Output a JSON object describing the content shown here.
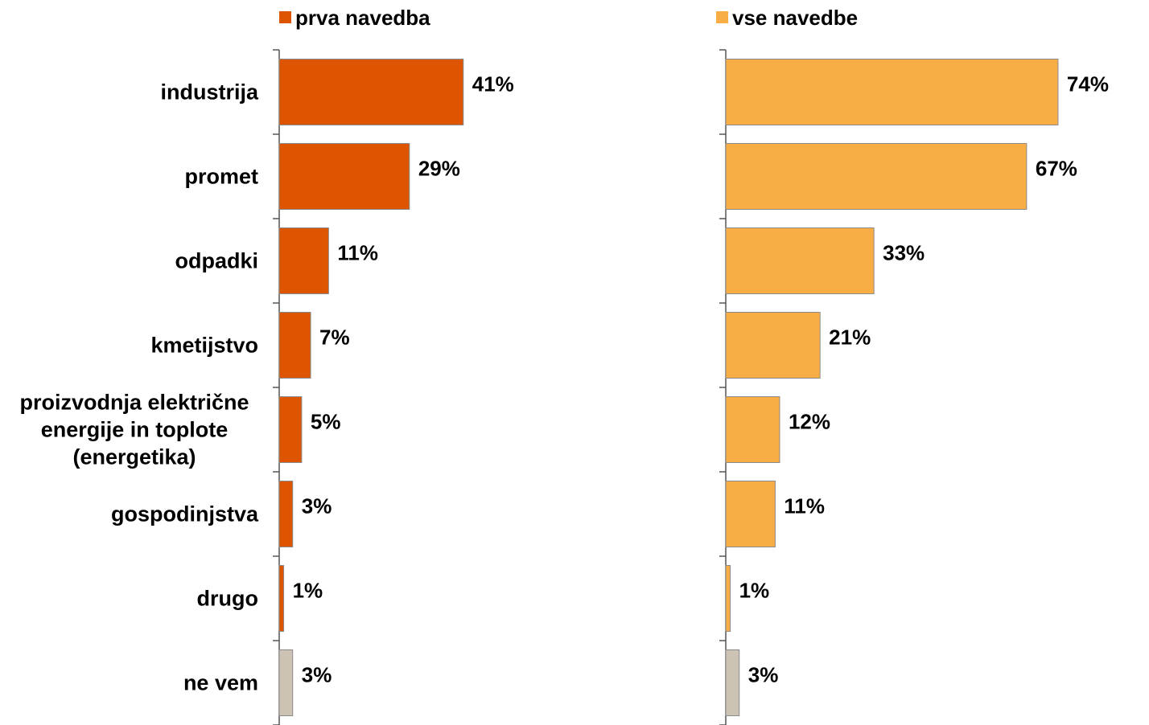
{
  "chart_data": {
    "type": "bar",
    "orientation": "horizontal",
    "categories": [
      [
        "industrija"
      ],
      [
        "promet"
      ],
      [
        "odpadki"
      ],
      [
        "kmetijstvo"
      ],
      [
        "proizvodnja električne",
        "energije in toplote",
        "(energetika)"
      ],
      [
        "gospodinjstva"
      ],
      [
        "drugo"
      ],
      [
        "ne vem"
      ]
    ],
    "series": [
      {
        "name": "prva navedba",
        "color": "#DD5500",
        "values": [
          41,
          29,
          11,
          7,
          5,
          3,
          1,
          3
        ],
        "labels": [
          "41%",
          "29%",
          "11%",
          "7%",
          "5%",
          "3%",
          "1%",
          "3%"
        ]
      },
      {
        "name": "vse navedbe",
        "color": "#F9AD45",
        "values": [
          74,
          67,
          33,
          21,
          12,
          11,
          1,
          3
        ],
        "labels": [
          "74%",
          "67%",
          "33%",
          "21%",
          "12%",
          "11%",
          "1%",
          "3%"
        ]
      }
    ],
    "special_color": "#CDC3B4",
    "special_category_index": 7,
    "legend_position": "top",
    "grid": false
  }
}
